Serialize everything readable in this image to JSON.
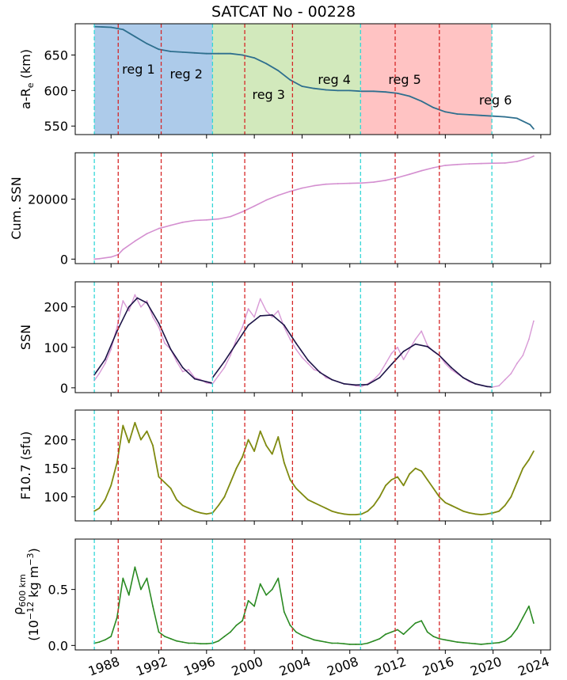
{
  "title": "SATCAT No - 00228",
  "x_ticks": [
    "1988",
    "1992",
    "1996",
    "2000",
    "2004",
    "2008",
    "2012",
    "2016",
    "2020",
    "2024"
  ],
  "regions": [
    {
      "label": "reg 1",
      "start": 1986.6,
      "end": 1996.5,
      "color": "#4a8bd0"
    },
    {
      "label": "reg 2",
      "start": 1986.6,
      "end": 1996.5,
      "color": "#4a8bd0"
    },
    {
      "label": "reg 3",
      "start": 1996.5,
      "end": 2008.9,
      "color": "#9ccf6a"
    },
    {
      "label": "reg 4",
      "start": 1996.5,
      "end": 2008.9,
      "color": "#9ccf6a"
    },
    {
      "label": "reg 5",
      "start": 2008.9,
      "end": 2019.9,
      "color": "#ff7a7a"
    },
    {
      "label": "reg 6",
      "start": 2008.9,
      "end": 2019.9,
      "color": "#ff7a7a"
    }
  ],
  "cyan_lines": [
    1986.6,
    1996.5,
    2008.9,
    2019.9
  ],
  "red_lines": [
    1988.6,
    1992.2,
    1999.2,
    2003.2,
    2011.8,
    2015.5
  ],
  "colors": {
    "altitude": "#2e6f8e",
    "cum_ssn": "#d48fd0",
    "ssn_raw": "#d89ad6",
    "ssn_fit": "#1b1246",
    "f107": "#7f8a10",
    "density": "#2a8a22",
    "cyan": "#34d6d6",
    "red": "#d62728"
  },
  "chart_data": [
    {
      "type": "line",
      "ylabel": "a-R",
      "ylabel_sub": "e",
      "ylabel_unit": " (km)",
      "yticks": [
        "550",
        "600",
        "650"
      ],
      "ylim": [
        538,
        694
      ],
      "xlim": [
        1985,
        2024.8
      ],
      "series": [
        {
          "x": [
            1986.6,
            1988,
            1989,
            1990,
            1991,
            1992,
            1993,
            1994,
            1995,
            1996,
            1997,
            1998,
            1999,
            2000,
            2001,
            2002,
            2003,
            2004,
            2005,
            2006,
            2007,
            2008,
            2009,
            2010,
            2011,
            2012,
            2013,
            2014,
            2015,
            2016,
            2017,
            2018,
            2019,
            2020,
            2021,
            2022,
            2023.1,
            2023.4
          ],
          "values": [
            690,
            689,
            686,
            676,
            666,
            658,
            655,
            654,
            653,
            652,
            652,
            652,
            650,
            646,
            638,
            628,
            615,
            606,
            603,
            601,
            600,
            600,
            599,
            599,
            598,
            596,
            592,
            585,
            576,
            570,
            567,
            566,
            565,
            564,
            563,
            561,
            552,
            546
          ]
        }
      ]
    },
    {
      "type": "line",
      "ylabel": "Cum. SSN",
      "yticks": [
        "0",
        "20000"
      ],
      "ylim": [
        -1500,
        35500
      ],
      "xlim": [
        1985,
        2024.8
      ],
      "series": [
        {
          "x": [
            1986.6,
            1987,
            1988,
            1988.6,
            1989,
            1990,
            1991,
            1992,
            1993,
            1994,
            1995,
            1996,
            1997,
            1998,
            1999,
            2000,
            2001,
            2002,
            2003,
            2004,
            2005,
            2006,
            2007,
            2008,
            2009,
            2010,
            2011,
            2012,
            2013,
            2014,
            2015,
            2016,
            2017,
            2018,
            2019,
            2020,
            2021,
            2022,
            2023,
            2023.4
          ],
          "values": [
            0,
            150,
            700,
            1500,
            3200,
            6000,
            8500,
            10200,
            11300,
            12300,
            12900,
            13100,
            13400,
            14200,
            15800,
            17700,
            19700,
            21300,
            22600,
            23700,
            24500,
            25000,
            25200,
            25300,
            25400,
            25700,
            26300,
            27200,
            28300,
            29500,
            30500,
            31300,
            31600,
            31800,
            31900,
            32000,
            32100,
            32600,
            33700,
            34400
          ]
        }
      ]
    },
    {
      "type": "line",
      "ylabel": "SSN",
      "yticks": [
        "0",
        "100",
        "200"
      ],
      "ylim": [
        -12,
        262
      ],
      "xlim": [
        1985,
        2024.8
      ],
      "series": [
        {
          "x": [
            1986.6,
            1987,
            1987.5,
            1988,
            1988.5,
            1989,
            1989.5,
            1990,
            1990.5,
            1991,
            1991.5,
            1992,
            1992.5,
            1993,
            1993.5,
            1994,
            1994.5,
            1995,
            1995.5,
            1996,
            1996.5,
            1997,
            1997.5,
            1998,
            1998.5,
            1999,
            1999.5,
            2000,
            2000.5,
            2001,
            2001.5,
            2002,
            2002.5,
            2003,
            2003.5,
            2004,
            2004.5,
            2005,
            2005.5,
            2006,
            2006.5,
            2007,
            2007.5,
            2008,
            2008.5,
            2009,
            2009.5,
            2010,
            2010.5,
            2011,
            2011.5,
            2012,
            2012.5,
            2013,
            2013.5,
            2014,
            2014.5,
            2015,
            2015.5,
            2016,
            2016.5,
            2017,
            2017.5,
            2018,
            2018.5,
            2019,
            2019.5,
            2020,
            2020.5,
            2021,
            2021.5,
            2022,
            2022.5,
            2023,
            2023.4
          ],
          "values": [
            18,
            35,
            60,
            95,
            150,
            215,
            190,
            230,
            200,
            215,
            175,
            150,
            110,
            95,
            65,
            40,
            45,
            25,
            20,
            12,
            10,
            30,
            50,
            80,
            120,
            150,
            195,
            175,
            220,
            190,
            175,
            190,
            150,
            120,
            95,
            75,
            60,
            45,
            40,
            25,
            20,
            15,
            10,
            8,
            5,
            3,
            10,
            20,
            35,
            60,
            85,
            100,
            70,
            95,
            120,
            140,
            105,
            90,
            80,
            60,
            45,
            35,
            25,
            15,
            10,
            6,
            3,
            2,
            5,
            20,
            35,
            60,
            80,
            120,
            165
          ]
        },
        {
          "x": [
            1986.6,
            1987.5,
            1988.5,
            1989.5,
            1990.2,
            1991,
            1992,
            1993,
            1994,
            1995,
            1996.4
          ],
          "values": [
            32,
            70,
            140,
            200,
            222,
            210,
            160,
            95,
            50,
            22,
            12
          ]
        },
        {
          "x": [
            1996.5,
            1997.5,
            1998.5,
            1999.5,
            2000.5,
            2001.5,
            2002.5,
            2003.5,
            2004.5,
            2005.5,
            2006.5,
            2007.5,
            2008.5,
            2009.5,
            2010.5,
            2011.5,
            2012.5,
            2013.5,
            2014.5,
            2015.5,
            2016.5,
            2017.5,
            2018.5,
            2019.5,
            2019.9
          ],
          "values": [
            25,
            65,
            110,
            155,
            178,
            180,
            155,
            110,
            68,
            38,
            20,
            10,
            7,
            8,
            25,
            58,
            90,
            108,
            102,
            80,
            50,
            25,
            10,
            3,
            2
          ]
        }
      ]
    },
    {
      "type": "line",
      "ylabel": "F10.7 (sfu)",
      "yticks": [
        "100",
        "150",
        "200"
      ],
      "ylim": [
        58,
        252
      ],
      "xlim": [
        1985,
        2024.8
      ],
      "series": [
        {
          "x": [
            1986.6,
            1987,
            1987.5,
            1988,
            1988.5,
            1989,
            1989.5,
            1990,
            1990.5,
            1991,
            1991.5,
            1992,
            1992.5,
            1993,
            1993.5,
            1994,
            1994.5,
            1995,
            1995.5,
            1996,
            1996.5,
            1997,
            1997.5,
            1998,
            1998.5,
            1999,
            1999.5,
            2000,
            2000.5,
            2001,
            2001.5,
            2002,
            2002.5,
            2003,
            2003.5,
            2004,
            2004.5,
            2005,
            2005.5,
            2006,
            2006.5,
            2007,
            2007.5,
            2008,
            2008.5,
            2009,
            2009.5,
            2010,
            2010.5,
            2011,
            2011.5,
            2012,
            2012.5,
            2013,
            2013.5,
            2014,
            2014.5,
            2015,
            2015.5,
            2016,
            2016.5,
            2017,
            2017.5,
            2018,
            2018.5,
            2019,
            2019.5,
            2020,
            2020.5,
            2021,
            2021.5,
            2022,
            2022.5,
            2023,
            2023.4
          ],
          "values": [
            75,
            80,
            95,
            120,
            160,
            225,
            195,
            230,
            200,
            215,
            190,
            135,
            125,
            115,
            95,
            85,
            80,
            75,
            72,
            70,
            72,
            85,
            100,
            125,
            150,
            170,
            200,
            180,
            215,
            190,
            175,
            205,
            160,
            130,
            115,
            105,
            95,
            90,
            85,
            80,
            75,
            72,
            70,
            69,
            69,
            70,
            75,
            85,
            100,
            120,
            130,
            135,
            120,
            140,
            150,
            145,
            130,
            115,
            100,
            90,
            85,
            80,
            75,
            72,
            70,
            69,
            70,
            72,
            75,
            85,
            100,
            125,
            150,
            165,
            180
          ]
        }
      ]
    },
    {
      "type": "line",
      "ylabel": "ρ",
      "ylabel_sub": "600 km",
      "ylabel2": "(10",
      "ylabel2_sup": "−12",
      "ylabel2_tail": " kg m",
      "ylabel2_sup2": "−3",
      "ylabel2_end": ")",
      "yticks": [
        "0.0",
        "0.5"
      ],
      "ylim": [
        -0.04,
        0.95
      ],
      "xlim": [
        1985,
        2024.8
      ],
      "series": [
        {
          "x": [
            1986.6,
            1987,
            1987.5,
            1988,
            1988.5,
            1989,
            1989.5,
            1990,
            1990.5,
            1991,
            1991.5,
            1992,
            1992.5,
            1993,
            1993.5,
            1994,
            1994.5,
            1995,
            1995.5,
            1996,
            1996.5,
            1997,
            1997.5,
            1998,
            1998.5,
            1999,
            1999.5,
            2000,
            2000.5,
            2001,
            2001.5,
            2002,
            2002.5,
            2003,
            2003.5,
            2004,
            2004.5,
            2005,
            2005.5,
            2006,
            2006.5,
            2007,
            2007.5,
            2008,
            2008.5,
            2009,
            2009.5,
            2010,
            2010.5,
            2011,
            2011.5,
            2012,
            2012.5,
            2013,
            2013.5,
            2014,
            2014.5,
            2015,
            2015.5,
            2016,
            2016.5,
            2017,
            2017.5,
            2018,
            2018.5,
            2019,
            2019.5,
            2020,
            2020.5,
            2021,
            2021.5,
            2022,
            2022.5,
            2023,
            2023.4
          ],
          "values": [
            0.02,
            0.03,
            0.05,
            0.08,
            0.25,
            0.6,
            0.45,
            0.7,
            0.5,
            0.6,
            0.35,
            0.12,
            0.08,
            0.06,
            0.04,
            0.03,
            0.02,
            0.02,
            0.015,
            0.015,
            0.02,
            0.04,
            0.08,
            0.12,
            0.18,
            0.22,
            0.4,
            0.35,
            0.55,
            0.45,
            0.5,
            0.6,
            0.3,
            0.18,
            0.12,
            0.09,
            0.07,
            0.05,
            0.04,
            0.03,
            0.02,
            0.02,
            0.015,
            0.01,
            0.01,
            0.01,
            0.02,
            0.04,
            0.06,
            0.1,
            0.12,
            0.14,
            0.1,
            0.15,
            0.2,
            0.22,
            0.12,
            0.08,
            0.06,
            0.05,
            0.04,
            0.03,
            0.025,
            0.02,
            0.015,
            0.01,
            0.015,
            0.02,
            0.025,
            0.04,
            0.08,
            0.15,
            0.25,
            0.35,
            0.2
          ]
        }
      ]
    }
  ]
}
